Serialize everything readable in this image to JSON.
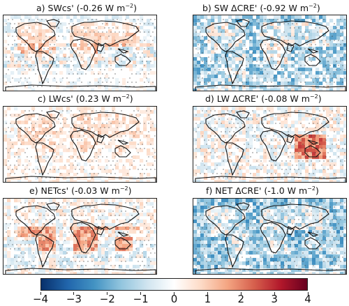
{
  "panels": [
    {
      "id": "a",
      "title": "a) SWcs' (-0.26 W m",
      "sup": "−2",
      "tail": ")",
      "style": "cs_sw"
    },
    {
      "id": "b",
      "title": "b) SW ΔCRE' (-0.92 W m",
      "sup": "−2",
      "tail": ")",
      "style": "cre_sw"
    },
    {
      "id": "c",
      "title": "c) LWcs' (0.23 W m",
      "sup": "−2",
      "tail": ")",
      "style": "cs_lw"
    },
    {
      "id": "d",
      "title": "d) LW ΔCRE' (-0.08 W m",
      "sup": "−2",
      "tail": ")",
      "style": "cre_lw"
    },
    {
      "id": "e",
      "title": "e) NETcs' (-0.03 W m",
      "sup": "−2",
      "tail": ")",
      "style": "cs_net"
    },
    {
      "id": "f",
      "title": "f) NET ΔCRE' (-1.0 W m",
      "sup": "−2",
      "tail": ")",
      "style": "cre_net"
    }
  ],
  "chart_data": {
    "type": "heatmap",
    "colorbar": {
      "min": -4,
      "max": 4,
      "ticks": [
        -4,
        -3,
        -2,
        -1,
        0,
        1,
        2,
        3,
        4
      ],
      "tick_labels": [
        "−4",
        "−3",
        "−2",
        "−1",
        "0",
        "1",
        "2",
        "3",
        "4"
      ],
      "colormap": "RdBu_r",
      "colors": [
        "#08306b",
        "#2166ac",
        "#4393c3",
        "#92c5de",
        "#d1e5f0",
        "#ffffff",
        "#fddbc7",
        "#f4a582",
        "#d6604d",
        "#b2182b",
        "#67001f"
      ]
    }
  }
}
